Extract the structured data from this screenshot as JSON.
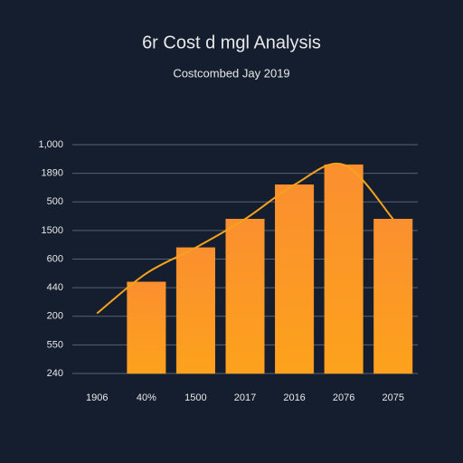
{
  "chart_data": {
    "type": "bar",
    "title": "6r Cost d mgl Analysis",
    "subtitle": "Costcombed Jay 2019",
    "categories": [
      "1906",
      "40%",
      "1500",
      "2017",
      "2016",
      "2076",
      "2075"
    ],
    "series": [
      {
        "type": "bar",
        "color": "#f7922c",
        "values": [
          null,
          3.2,
          4.4,
          5.4,
          6.6,
          7.3,
          5.4
        ]
      },
      {
        "type": "line",
        "color": "#f5a31c",
        "values": [
          2.1,
          3.5,
          4.4,
          5.4,
          6.6,
          7.3,
          5.4
        ]
      }
    ],
    "ylim": [
      0,
      8
    ],
    "yticks": [
      {
        "value": 0,
        "label": "240"
      },
      {
        "value": 1,
        "label": "550"
      },
      {
        "value": 2,
        "label": "200"
      },
      {
        "value": 3,
        "label": "440"
      },
      {
        "value": 4,
        "label": "600"
      },
      {
        "value": 5,
        "label": "1500"
      },
      {
        "value": 6,
        "label": "500"
      },
      {
        "value": 7,
        "label": "1890"
      },
      {
        "value": 8,
        "label": "1,000"
      }
    ],
    "grid": true
  }
}
